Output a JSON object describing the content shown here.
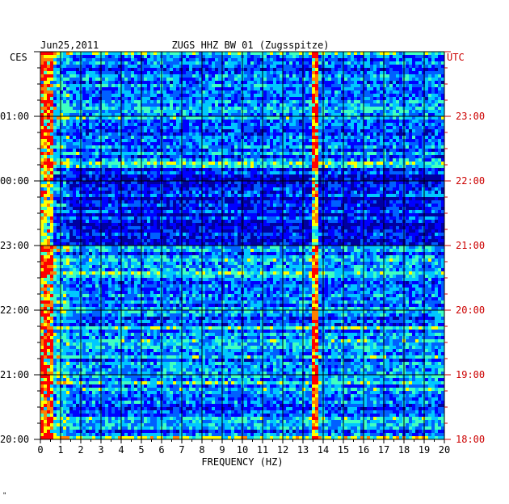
{
  "chart_data": {
    "type": "heatmap",
    "title": "ZUGS HHZ BW 01 (Zugsspitze)",
    "date": "Jun25,2011",
    "xlabel": "FREQUENCY (HZ)",
    "xlim": [
      0,
      20
    ],
    "x_ticks": [
      "0",
      "1",
      "2",
      "3",
      "4",
      "5",
      "6",
      "7",
      "8",
      "9",
      "10",
      "11",
      "12",
      "13",
      "14",
      "15",
      "16",
      "17",
      "18",
      "19",
      "20"
    ],
    "left_timezone": "CES",
    "right_timezone": "UTC",
    "left_time_labels": [
      "01:00",
      "00:00",
      "23:00",
      "22:00",
      "21:00",
      "20:00"
    ],
    "right_time_labels": [
      "23:00",
      "22:00",
      "21:00",
      "20:00",
      "19:00",
      "18:00"
    ],
    "ylim_hours_from_bottom": [
      0,
      6
    ],
    "colormap": [
      "#0000a0",
      "#0000ff",
      "#0060ff",
      "#00c8ff",
      "#40ffc0",
      "#ffff00",
      "#ff8000",
      "#ff0000"
    ],
    "signal_band_hz": 13.6,
    "grid": true
  },
  "corner_mark": "\""
}
